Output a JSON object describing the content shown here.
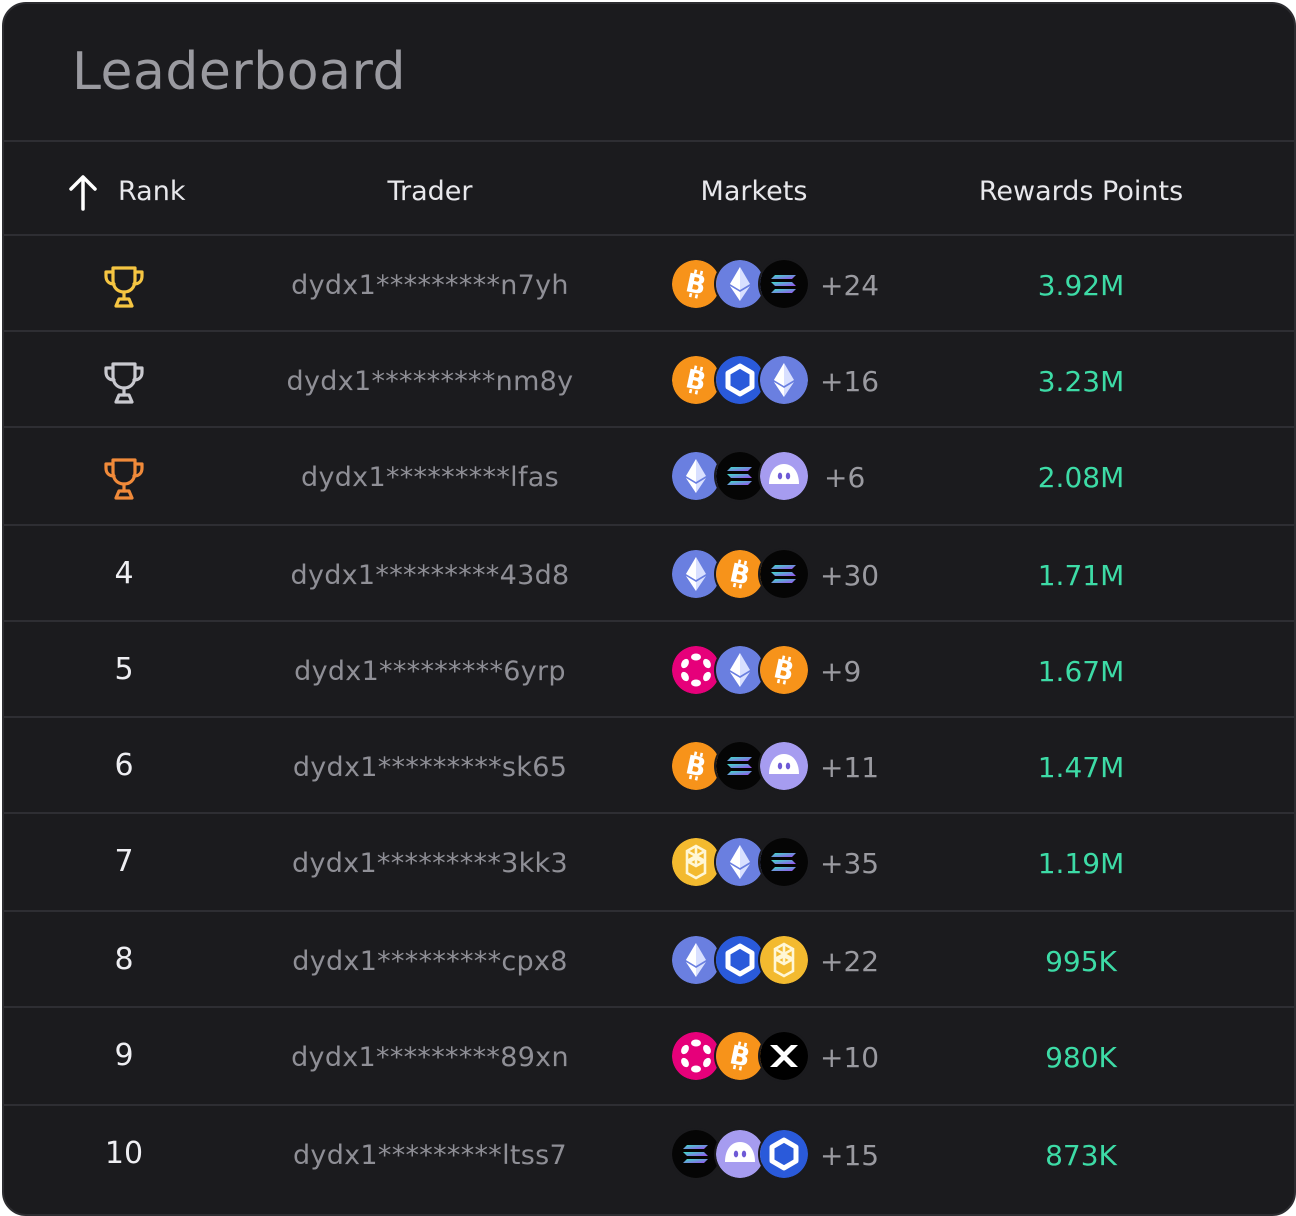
{
  "title": "Leaderboard",
  "columns": {
    "rank": "Rank",
    "trader": "Trader",
    "markets": "Markets",
    "points": "Rewards Points"
  },
  "sort_icon": "arrow-up-icon",
  "colors": {
    "gold": "#f5c542",
    "silver": "#c9c9cf",
    "bronze": "#f08a3a",
    "points": "#3ddba6"
  },
  "rows": [
    {
      "rank": "1",
      "trophy": "gold",
      "trader": "dydx1*********n7yh",
      "markets": [
        "btc",
        "eth",
        "sol"
      ],
      "more": "+24",
      "points": "3.92M"
    },
    {
      "rank": "2",
      "trophy": "silver",
      "trader": "dydx1*********nm8y",
      "markets": [
        "btc",
        "link",
        "eth"
      ],
      "more": "+16",
      "points": "3.23M"
    },
    {
      "rank": "3",
      "trophy": "bronze",
      "trader": "dydx1*********lfas",
      "markets": [
        "eth",
        "sol",
        "ghost"
      ],
      "more": "+6",
      "points": "2.08M"
    },
    {
      "rank": "4",
      "trophy": null,
      "trader": "dydx1*********43d8",
      "markets": [
        "eth",
        "btc",
        "sol"
      ],
      "more": "+30",
      "points": "1.71M"
    },
    {
      "rank": "5",
      "trophy": null,
      "trader": "dydx1*********6yrp",
      "markets": [
        "dot",
        "eth",
        "btc"
      ],
      "more": "+9",
      "points": "1.67M"
    },
    {
      "rank": "6",
      "trophy": null,
      "trader": "dydx1*********sk65",
      "markets": [
        "btc",
        "sol",
        "ghost"
      ],
      "more": "+11",
      "points": "1.47M"
    },
    {
      "rank": "7",
      "trophy": null,
      "trader": "dydx1*********3kk3",
      "markets": [
        "bnb",
        "eth",
        "sol"
      ],
      "more": "+35",
      "points": "1.19M"
    },
    {
      "rank": "8",
      "trophy": null,
      "trader": "dydx1*********cpx8",
      "markets": [
        "eth",
        "link",
        "bnb"
      ],
      "more": "+22",
      "points": "995K"
    },
    {
      "rank": "9",
      "trophy": null,
      "trader": "dydx1*********89xn",
      "markets": [
        "dot",
        "btc",
        "xrp"
      ],
      "more": "+10",
      "points": "980K"
    },
    {
      "rank": "10",
      "trophy": null,
      "trader": "dydx1*********ltss7",
      "markets": [
        "sol",
        "ghost",
        "link"
      ],
      "more": "+15",
      "points": "873K"
    }
  ]
}
